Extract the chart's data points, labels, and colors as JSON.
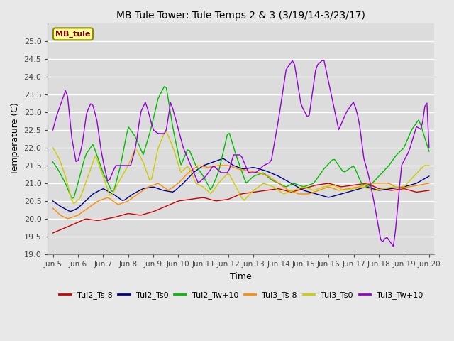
{
  "title": "MB Tule Tower: Tule Temps 2 & 3 (3/19/14-3/23/17)",
  "xlabel": "Time",
  "ylabel": "Temperature (C)",
  "ylim": [
    19.0,
    25.5
  ],
  "yticks": [
    19.0,
    19.5,
    20.0,
    20.5,
    21.0,
    21.5,
    22.0,
    22.5,
    23.0,
    23.5,
    24.0,
    24.5,
    25.0
  ],
  "xtick_labels": [
    "Jun 5",
    "Jun 6",
    "Jun 7",
    "Jun 8",
    "Jun 9",
    "Jun 10",
    "Jun 11",
    "Jun 12",
    "Jun 13",
    "Jun 14",
    "Jun 15",
    "Jun 16",
    "Jun 17",
    "Jun 18",
    "Jun 19",
    "Jun 20"
  ],
  "background_color": "#e8e8e8",
  "plot_bg_color": "#dcdcdc",
  "grid_color": "#ffffff",
  "series": [
    {
      "name": "Tul2_Ts-8",
      "color": "#cc0000",
      "lw": 1.0
    },
    {
      "name": "Tul2_Ts0",
      "color": "#00008b",
      "lw": 1.0
    },
    {
      "name": "Tul2_Tw+10",
      "color": "#00bb00",
      "lw": 1.0
    },
    {
      "name": "Tul3_Ts-8",
      "color": "#ff8c00",
      "lw": 1.0
    },
    {
      "name": "Tul3_Ts0",
      "color": "#cccc00",
      "lw": 1.0
    },
    {
      "name": "Tul3_Tw+10",
      "color": "#9400d3",
      "lw": 1.0
    }
  ],
  "watermark": "MB_tule",
  "watermark_color": "#8b0000",
  "watermark_bg": "#ffff99",
  "watermark_edge": "#8b8b00"
}
